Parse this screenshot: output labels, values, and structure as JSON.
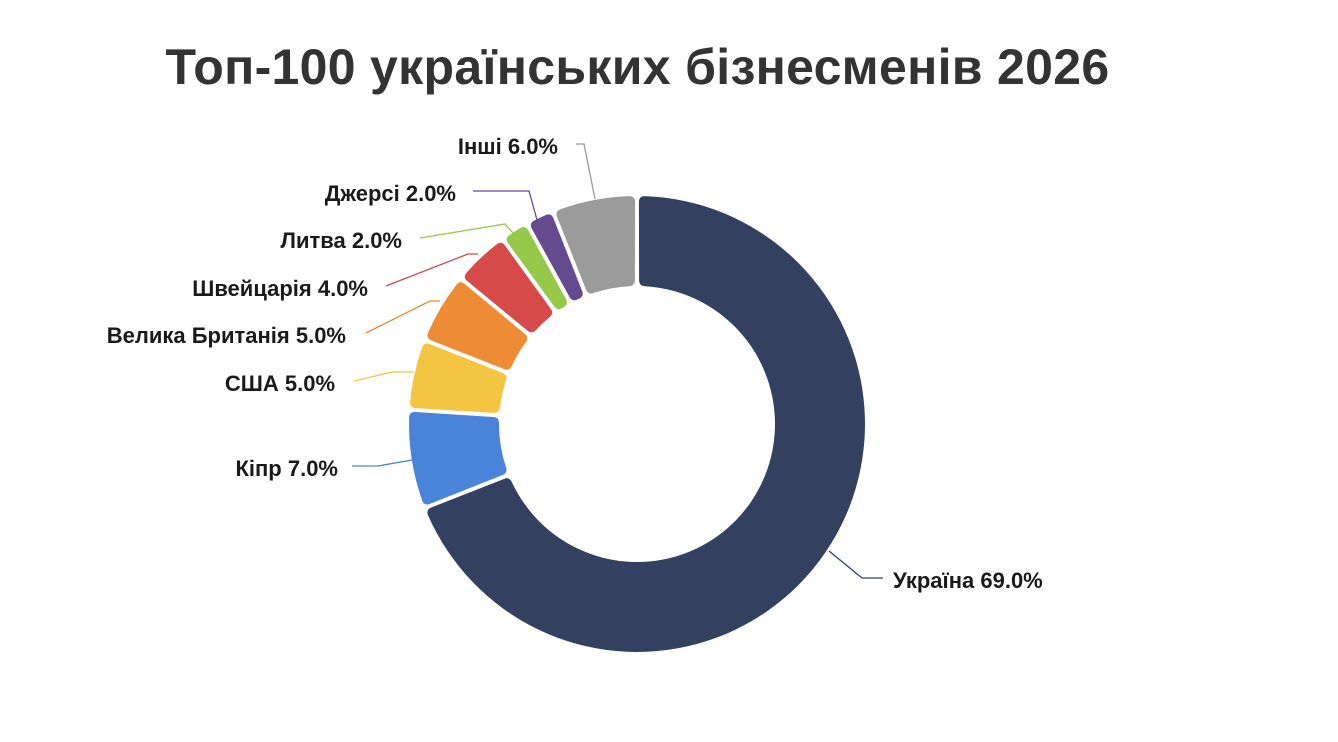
{
  "chart_data": {
    "type": "pie",
    "variant": "donut",
    "title": "Топ-100 українських бізнесменів 2026",
    "labels": [
      "Україна",
      "Кіпр",
      "США",
      "Велика Британія",
      "Швейцарія",
      "Литва",
      "Джерсі",
      "Інші"
    ],
    "values": [
      69.0,
      7.0,
      5.0,
      5.0,
      4.0,
      2.0,
      2.0,
      6.0
    ],
    "unit": "%",
    "data_labels": [
      "Україна 69.0%",
      "Кіпр 7.0%",
      "США 5.0%",
      "Велика Британія 5.0%",
      "Швейцарія 4.0%",
      "Литва 2.0%",
      "Джерсі 2.0%",
      "Інші 6.0%"
    ],
    "colors": [
      "#334060",
      "#4a84d8",
      "#f4c542",
      "#ee8c35",
      "#d64a4a",
      "#96c84a",
      "#644b8f",
      "#9b9b9b"
    ],
    "start_angle": "12 o'clock",
    "direction": "clockwise",
    "legend": "none"
  }
}
